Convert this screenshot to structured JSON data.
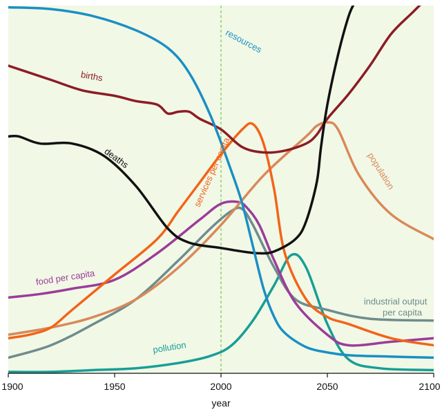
{
  "chart_data": {
    "type": "line",
    "title": "",
    "xlabel": "year",
    "ylabel": "",
    "xlim": [
      1900,
      2100
    ],
    "ylim": [
      0,
      100
    ],
    "x_ticks": [
      1900,
      1950,
      2000,
      2050,
      2100
    ],
    "y_ticks": [],
    "grid": false,
    "legend": "none (series labelled inline)",
    "colors": {
      "plot_background": "#f1f8e6",
      "reference_line": "#8fd06a",
      "resources": "#1a8fc4",
      "births": "#8c1c26",
      "deaths": "#111111",
      "services per capita": "#f26419",
      "population": "#d9895a",
      "food per capita": "#9b3c99",
      "industrial output per capita": "#6f8c8c",
      "pollution": "#189e96"
    },
    "reference_line_x": 2000,
    "series": [
      {
        "name": "resources",
        "label_lines": [
          "resources"
        ],
        "color": "#1a8fc4",
        "x": [
          1900,
          1920,
          1940,
          1960,
          1975,
          1985,
          1995,
          2005,
          2010,
          2015,
          2020,
          2025,
          2030,
          2040,
          2050,
          2060,
          2080,
          2100
        ],
        "y": [
          99.5,
          99,
          97,
          93,
          88,
          81,
          69,
          53,
          44,
          32,
          20,
          12,
          7.5,
          3.5,
          2,
          1.2,
          0.8,
          0.5
        ]
      },
      {
        "name": "births",
        "label_lines": [
          "births"
        ],
        "color": "#8c1c26",
        "x": [
          1900,
          1920,
          1935,
          1950,
          1960,
          1970,
          1975,
          1980,
          1985,
          1990,
          2000,
          2010,
          2020,
          2030,
          2040,
          2045,
          2050,
          2060,
          2070,
          2080,
          2090,
          2095
        ],
        "y": [
          83,
          79,
          76,
          74.5,
          73,
          72,
          69.5,
          70,
          70,
          68,
          65,
          60,
          58.5,
          59,
          61,
          63.5,
          68,
          75,
          83,
          92,
          98,
          101
        ]
      },
      {
        "name": "deaths",
        "label_lines": [
          "deaths"
        ],
        "color": "#111111",
        "x": [
          1900,
          1905,
          1915,
          1930,
          1945,
          1960,
          1975,
          1985,
          2000,
          2010,
          2018,
          2025,
          2035,
          2040,
          2045,
          2047,
          2050,
          2055,
          2060,
          2063
        ],
        "y": [
          63,
          63,
          61,
          61,
          57.5,
          49,
          37,
          33,
          31.5,
          30.5,
          30,
          30.5,
          34,
          39,
          50,
          60,
          72,
          86,
          97,
          101
        ]
      },
      {
        "name": "services per capita",
        "label_lines": [
          "services per capita"
        ],
        "color": "#f26419",
        "x": [
          1900,
          1910,
          1920,
          1930,
          1950,
          1970,
          1980,
          1990,
          2000,
          2010,
          2015,
          2020,
          2025,
          2030,
          2040,
          2050,
          2060,
          2080,
          2100
        ],
        "y": [
          6,
          7,
          9,
          14,
          24,
          34,
          42,
          50,
          58,
          65,
          66.5,
          61,
          48,
          30,
          17,
          12,
          10,
          6,
          4
        ]
      },
      {
        "name": "population",
        "label_lines": [
          "population"
        ],
        "color": "#d9895a",
        "x": [
          1900,
          1920,
          1940,
          1960,
          1980,
          2000,
          2020,
          2040,
          2045,
          2050,
          2055,
          2065,
          2080,
          2100
        ],
        "y": [
          7,
          9,
          12,
          17,
          26,
          38,
          52,
          63,
          66,
          67,
          65,
          52,
          41,
          34
        ]
      },
      {
        "name": "food per capita",
        "label_lines": [
          "food per capita"
        ],
        "color": "#9b3c99",
        "x": [
          1900,
          1915,
          1930,
          1950,
          1970,
          1990,
          2000,
          2008,
          2012,
          2018,
          2025,
          2035,
          2050,
          2060,
          2080,
          2100
        ],
        "y": [
          17.5,
          18.5,
          20,
          22.5,
          30,
          39.5,
          44,
          44.5,
          43,
          38,
          28,
          16,
          7,
          4,
          5,
          6
        ]
      },
      {
        "name": "industrial output per capita",
        "label_lines": [
          "industrial output",
          "per capita"
        ],
        "color": "#6f8c8c",
        "x": [
          1900,
          1920,
          1940,
          1960,
          1980,
          1995,
          2005,
          2010,
          2015,
          2025,
          2035,
          2050,
          2070,
          2100
        ],
        "y": [
          0.5,
          4,
          10,
          17,
          28,
          37,
          42,
          42.5,
          38,
          26,
          17,
          14,
          11.5,
          11
        ]
      },
      {
        "name": "pollution",
        "label_lines": [
          "pollution"
        ],
        "color": "#189e96",
        "x": [
          1900,
          1920,
          1940,
          1960,
          1980,
          1995,
          2005,
          2015,
          2025,
          2033,
          2040,
          2050,
          2060,
          2075,
          2100
        ],
        "y": [
          -3.5,
          -3.5,
          -3,
          -2.5,
          -1,
          1,
          4,
          11,
          21,
          29.5,
          26,
          10,
          0,
          -2.5,
          -3
        ]
      }
    ]
  }
}
